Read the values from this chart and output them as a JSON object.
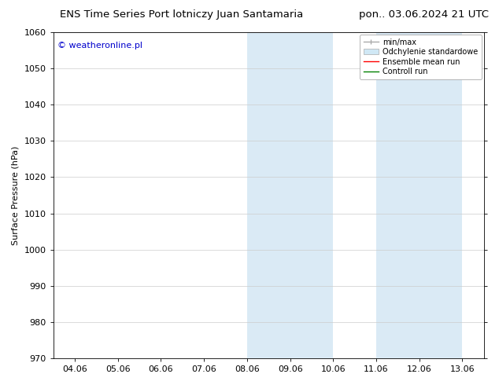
{
  "title_left": "ENS Time Series Port lotniczy Juan Santamaria",
  "title_right": "pon.. 03.06.2024 21 UTC",
  "ylabel": "Surface Pressure (hPa)",
  "watermark": "© weatheronline.pl",
  "watermark_color": "#0000cc",
  "ylim": [
    970,
    1060
  ],
  "yticks": [
    970,
    980,
    990,
    1000,
    1010,
    1020,
    1030,
    1040,
    1050,
    1060
  ],
  "xtick_labels": [
    "04.06",
    "05.06",
    "06.06",
    "07.06",
    "08.06",
    "09.06",
    "10.06",
    "11.06",
    "12.06",
    "13.06"
  ],
  "xtick_positions": [
    0,
    1,
    2,
    3,
    4,
    5,
    6,
    7,
    8,
    9
  ],
  "xlim": [
    -0.5,
    9.5
  ],
  "shaded_bands": [
    {
      "x_start": 4.0,
      "x_end": 6.0,
      "color": "#daeaf5"
    },
    {
      "x_start": 7.0,
      "x_end": 8.0,
      "color": "#daeaf5"
    },
    {
      "x_start": 8.0,
      "x_end": 9.0,
      "color": "#daeaf5"
    }
  ],
  "legend_items": [
    {
      "label": "min/max",
      "type": "errorbar",
      "color": "#aaaaaa",
      "lw": 1.0
    },
    {
      "label": "Odchylenie standardowe",
      "type": "patch",
      "facecolor": "#d0e8f5",
      "edgecolor": "#aaaaaa"
    },
    {
      "label": "Ensemble mean run",
      "type": "line",
      "color": "red",
      "lw": 1.0
    },
    {
      "label": "Controll run",
      "type": "line",
      "color": "green",
      "lw": 1.0
    }
  ],
  "background_color": "#ffffff",
  "grid_color": "#cccccc",
  "title_fontsize": 9.5,
  "axis_label_fontsize": 8,
  "tick_fontsize": 8,
  "legend_fontsize": 7,
  "watermark_fontsize": 8
}
